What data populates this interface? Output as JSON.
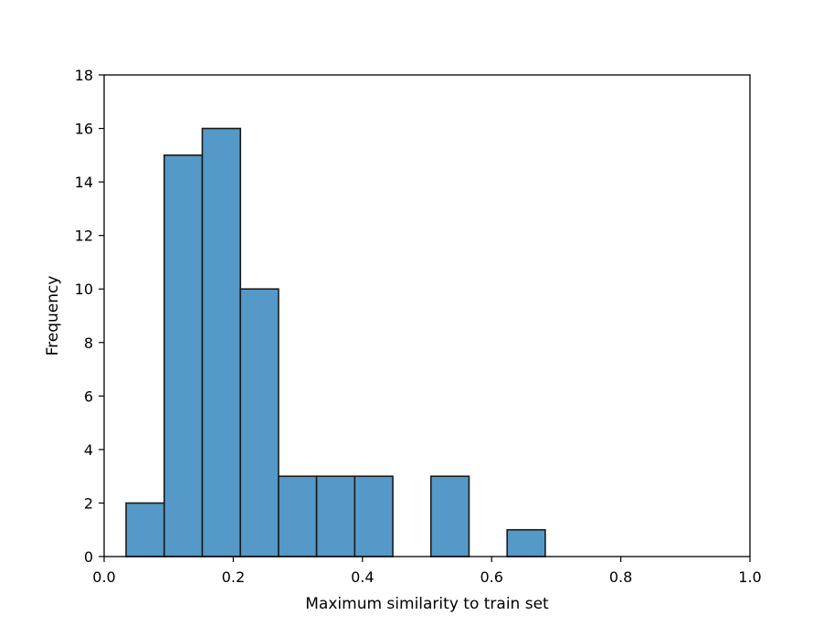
{
  "chart_data": {
    "type": "bar",
    "subtype": "histogram",
    "title": "",
    "xlabel": "Maximum similarity to train set",
    "ylabel": "Frequency",
    "xlim": [
      0.0,
      1.0
    ],
    "ylim": [
      0,
      18
    ],
    "xticks": [
      0.0,
      0.2,
      0.4,
      0.6,
      0.8,
      1.0
    ],
    "xtick_labels": [
      "0.0",
      "0.2",
      "0.4",
      "0.6",
      "0.8",
      "1.0"
    ],
    "yticks": [
      0,
      2,
      4,
      6,
      8,
      10,
      12,
      14,
      16,
      18
    ],
    "ytick_labels": [
      "0",
      "2",
      "4",
      "6",
      "8",
      "10",
      "12",
      "14",
      "16",
      "18"
    ],
    "grid": false,
    "legend": "none",
    "bins": [
      {
        "x0": 0.034,
        "x1": 0.093,
        "count": 2
      },
      {
        "x0": 0.093,
        "x1": 0.152,
        "count": 15
      },
      {
        "x0": 0.152,
        "x1": 0.211,
        "count": 16
      },
      {
        "x0": 0.211,
        "x1": 0.27,
        "count": 10
      },
      {
        "x0": 0.27,
        "x1": 0.329,
        "count": 3
      },
      {
        "x0": 0.329,
        "x1": 0.388,
        "count": 3
      },
      {
        "x0": 0.388,
        "x1": 0.447,
        "count": 3
      },
      {
        "x0": 0.447,
        "x1": 0.506,
        "count": 0
      },
      {
        "x0": 0.506,
        "x1": 0.565,
        "count": 3
      },
      {
        "x0": 0.565,
        "x1": 0.624,
        "count": 0
      },
      {
        "x0": 0.624,
        "x1": 0.683,
        "count": 1
      }
    ],
    "colors": {
      "bar_fill": "#5499c7",
      "bar_edge": "#1a1a1a",
      "axis": "#000000"
    }
  }
}
